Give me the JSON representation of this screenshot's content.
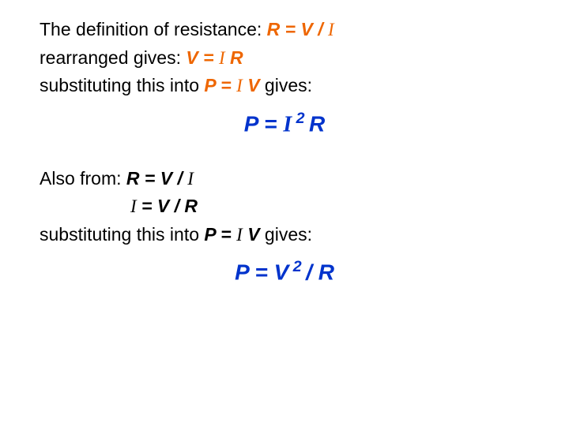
{
  "line1_lead": "The definition of resistance:  ",
  "eq1_R": "R",
  "eq1_eq": " = ",
  "eq1_V": "V",
  "eq1_slash": " / ",
  "eq1_I": "I",
  "line2_lead": "rearranged gives: ",
  "eq2_V": "V",
  "eq2_eq": " = ",
  "eq2_I": "I",
  "eq2_sp": " ",
  "eq2_R": "R",
  "line3_lead": "substituting this into ",
  "eq3_P": "P",
  "eq3_eq": " = ",
  "eq3_I": "I",
  "eq3_sp": " ",
  "eq3_V": "V",
  "line3_tail": "  gives:",
  "f1_P": "P ",
  "f1_eq": "= ",
  "f1_I": "I",
  "f1_sup": " 2 ",
  "f1_R": "R",
  "line4_lead": "Also from: ",
  "eq4_R": "R",
  "eq4_eq": " = ",
  "eq4_V": "V",
  "eq4_slash": " / ",
  "eq4_I": "I",
  "eq5_I": "I",
  "eq5_eq": " = ",
  "eq5_V": "V",
  "eq5_slash": " / ",
  "eq5_R": "R",
  "line6_lead": "substituting this into ",
  "eq6_P": "P",
  "eq6_eq": " = ",
  "eq6_I": "I",
  "eq6_sp": " ",
  "eq6_V": "V",
  "line6_tail": " gives:",
  "f2_P": "P ",
  "f2_eq": "= ",
  "f2_V": "V",
  "f2_sup": " 2 ",
  "f2_slash": "/ ",
  "f2_R": "R"
}
